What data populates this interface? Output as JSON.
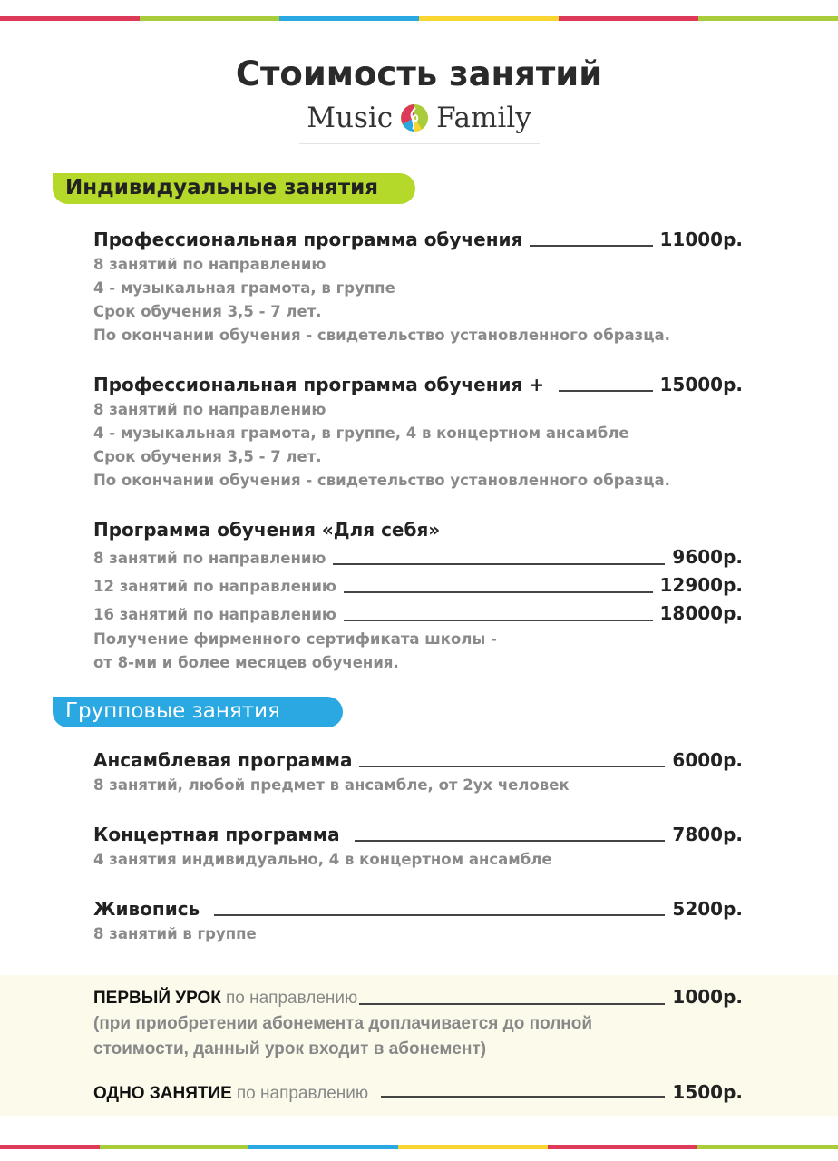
{
  "colors": {
    "red": "#dd3a59",
    "green": "#a9cc3a",
    "blue": "#2aa8e2",
    "yellow": "#f8d530",
    "bg_note": "#fcfaea"
  },
  "title": "Стоимость занятий",
  "logo": {
    "left": "Music",
    "right": "Family",
    "icon": "treble-clef-logo-icon"
  },
  "individual": {
    "badge": "Индивидуальные занятия",
    "items": [
      {
        "name": "Профессиональная программа обучения",
        "price": "11000р.",
        "lines": [
          "8 занятий по направлению",
          "4 - музыкальная грамота, в группе",
          "Срок обучения  3,5 - 7 лет.",
          "По окончании обучения - свидетельство установленного образца."
        ]
      },
      {
        "name": "Профессиональная программа обучения +",
        "price": "15000р.",
        "lines": [
          "8 занятий по направлению",
          "4 - музыкальная грамота, в группе, 4 в концертном ансамбле",
          "Срок обучения  3,5 - 7 лет.",
          "По окончании обучения - свидетельство установленного образца."
        ]
      }
    ],
    "self": {
      "name": "Программа обучения «Для себя»",
      "options": [
        {
          "label": "8 занятий по направлению",
          "price": "9600р."
        },
        {
          "label": "12 занятий по направлению",
          "price": "12900р."
        },
        {
          "label": "16 занятий по направлению",
          "price": "18000р."
        }
      ],
      "lines": [
        "Получение фирменного сертификата школы -",
        "от 8-ми и более месяцев обучения."
      ]
    }
  },
  "group": {
    "badge": "Групповые занятия",
    "items": [
      {
        "name": "Ансамблевая программа",
        "price": "6000р.",
        "line": "8 занятий, любой предмет в ансамбле, от 2ух человек"
      },
      {
        "name": "Концертная программа",
        "price": "7800р.",
        "line": "4 занятия индивидуально, 4 в концертном ансамбле"
      },
      {
        "name": "Живопись",
        "price": "5200р.",
        "line": "8 занятий в группе"
      }
    ]
  },
  "first_lesson": {
    "caps": "ПЕРВЫЙ УРОК",
    "rest": "по направлению",
    "price": "1000р.",
    "lines": [
      "(при приобретении абонемента доплачивается до полной",
      "стоимости, данный урок входит в абонемент)"
    ]
  },
  "single_lesson": {
    "caps": "ОДНО ЗАНЯТИЕ",
    "rest": "по направлению",
    "price": "1500р."
  }
}
